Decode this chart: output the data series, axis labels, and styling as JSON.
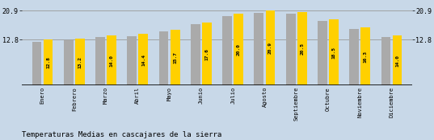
{
  "categories": [
    "Enero",
    "Febrero",
    "Marzo",
    "Abril",
    "Mayo",
    "Junio",
    "Julio",
    "Agosto",
    "Septiembre",
    "Octubre",
    "Noviembre",
    "Diciembre"
  ],
  "values": [
    12.8,
    13.2,
    14.0,
    14.4,
    15.7,
    17.6,
    20.0,
    20.9,
    20.5,
    18.5,
    16.3,
    14.0
  ],
  "gray_values": [
    12.3,
    12.7,
    13.5,
    13.9,
    15.2,
    17.1,
    19.5,
    20.4,
    20.0,
    18.0,
    15.8,
    13.5
  ],
  "bar_color_yellow": "#FFD000",
  "bar_color_gray": "#AAAAAA",
  "background_color": "#C8D8E8",
  "title": "Temperaturas Medias en cascajares de la sierra",
  "yticks": [
    12.8,
    20.9
  ],
  "label_fontsize": 6.0,
  "title_fontsize": 6.5,
  "value_fontsize": 4.5,
  "tick_label_fontsize": 5.0
}
